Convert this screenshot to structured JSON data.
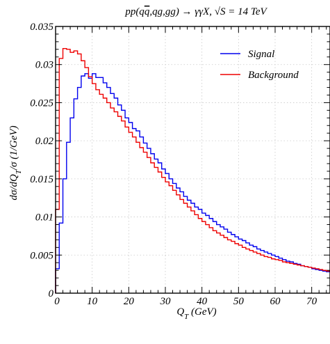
{
  "chart_data": {
    "type": "line",
    "title": "pp(qq̄,qg,gg) → γγX, √S = 14 TeV",
    "xlabel": "Q_T (GeV)",
    "ylabel": "dσ/dQ_T/σ (1/GeV)",
    "xlim": [
      0,
      75
    ],
    "ylim": [
      0,
      0.035
    ],
    "x_ticks": [
      0,
      10,
      20,
      30,
      40,
      50,
      60,
      70
    ],
    "y_ticks": [
      0,
      0.005,
      0.01,
      0.015,
      0.02,
      0.025,
      0.03,
      0.035
    ],
    "y_tick_labels": [
      "0",
      "0.005",
      "0.01",
      "0.015",
      "0.02",
      "0.025",
      "0.03",
      "0.035"
    ],
    "grid": true,
    "legend_position": "top-right",
    "bin_width": 1,
    "series": [
      {
        "name": "Signal",
        "color": "#0000ee",
        "values": [
          0.0032,
          0.0092,
          0.015,
          0.0198,
          0.023,
          0.0255,
          0.027,
          0.0285,
          0.0288,
          0.0282,
          0.0288,
          0.0283,
          0.0283,
          0.0276,
          0.027,
          0.0262,
          0.0256,
          0.0247,
          0.024,
          0.023,
          0.0224,
          0.0216,
          0.0213,
          0.0205,
          0.0197,
          0.019,
          0.0183,
          0.0176,
          0.0171,
          0.0163,
          0.0157,
          0.015,
          0.0144,
          0.0138,
          0.0133,
          0.0127,
          0.0122,
          0.0118,
          0.0113,
          0.011,
          0.0105,
          0.0102,
          0.0098,
          0.0094,
          0.009,
          0.0087,
          0.0084,
          0.008,
          0.0077,
          0.0074,
          0.0071,
          0.0069,
          0.0066,
          0.0063,
          0.0061,
          0.0058,
          0.0056,
          0.0054,
          0.0052,
          0.005,
          0.0048,
          0.0046,
          0.0044,
          0.0042,
          0.0041,
          0.0039,
          0.0038,
          0.0036,
          0.0035,
          0.0034,
          0.0032,
          0.0031,
          0.003,
          0.0029,
          0.0028
        ]
      },
      {
        "name": "Background",
        "color": "#ee0000",
        "values": [
          0.011,
          0.0308,
          0.0321,
          0.032,
          0.0316,
          0.0318,
          0.0314,
          0.0305,
          0.0296,
          0.0284,
          0.0275,
          0.0267,
          0.0261,
          0.0256,
          0.025,
          0.0243,
          0.0238,
          0.0232,
          0.0226,
          0.0218,
          0.0211,
          0.0205,
          0.0198,
          0.0191,
          0.0185,
          0.0178,
          0.0171,
          0.0165,
          0.0159,
          0.0152,
          0.0146,
          0.0141,
          0.0135,
          0.0129,
          0.0123,
          0.0118,
          0.0113,
          0.0108,
          0.0103,
          0.0098,
          0.0094,
          0.009,
          0.0086,
          0.0082,
          0.0079,
          0.0076,
          0.0073,
          0.007,
          0.0068,
          0.0065,
          0.0063,
          0.006,
          0.0058,
          0.0056,
          0.0054,
          0.0052,
          0.005,
          0.0048,
          0.0047,
          0.0045,
          0.0044,
          0.0043,
          0.0041,
          0.004,
          0.0039,
          0.0038,
          0.0037,
          0.0036,
          0.0035,
          0.0034,
          0.0033,
          0.0032,
          0.0031,
          0.003,
          0.0029
        ]
      }
    ]
  }
}
